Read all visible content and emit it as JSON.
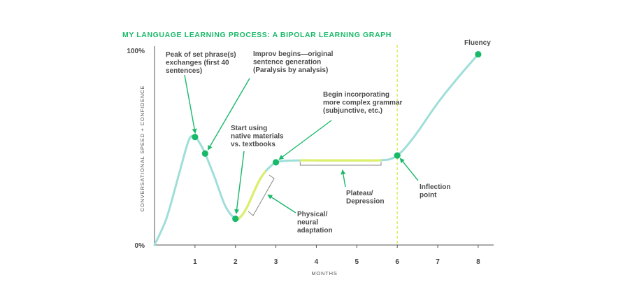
{
  "colors": {
    "curve": "#9fded9",
    "highlight": "#dcee6a",
    "accent": "#19b96a",
    "axis": "#555555",
    "text": "#4a4a4a",
    "title": "#19b96a",
    "bracket": "#888888"
  },
  "chart_data": {
    "type": "line",
    "title": "MY LANGUAGE LEARNING PROCESS: A BIPOLAR LEARNING GRAPH",
    "xlabel": "MONTHS",
    "ylabel": "CONVERSATIONAL SPEED + CONFIDENCE",
    "xlim": [
      0,
      8.4
    ],
    "ylim": [
      0,
      100
    ],
    "x_ticks": [
      "1",
      "2",
      "3",
      "4",
      "5",
      "6",
      "7",
      "8"
    ],
    "y_ticks": [
      "0%",
      "100%"
    ],
    "grid": false,
    "series": [
      {
        "x": [
          0,
          0.3,
          0.6,
          0.85,
          1.0,
          1.1,
          1.25,
          1.5,
          1.75,
          2.0,
          2.15,
          2.3,
          2.45,
          2.6,
          2.75,
          2.9,
          3.0,
          3.2,
          3.6,
          4.0,
          4.5,
          5.0,
          5.5,
          5.8,
          6.0,
          6.2,
          6.5,
          7.0,
          7.5,
          8.0
        ],
        "y": [
          0,
          14,
          36,
          54,
          55.5,
          53,
          47,
          34,
          20,
          13.5,
          15,
          20,
          27,
          33.5,
          38,
          41,
          42.5,
          43.2,
          43.5,
          43.5,
          43.5,
          43.5,
          43.5,
          44,
          46,
          50,
          58,
          73,
          86,
          98
        ]
      }
    ],
    "highlights": [
      {
        "label": "Physical/neural adaptation",
        "x_range": [
          2.05,
          2.75
        ]
      },
      {
        "label": "Plateau/Depression",
        "x_range": [
          3.6,
          5.6
        ]
      },
      {
        "label": "Inflection point",
        "vertical_x": 6.0
      }
    ],
    "key_points": [
      {
        "x": 1.0,
        "y": 55.5
      },
      {
        "x": 1.25,
        "y": 47
      },
      {
        "x": 2.0,
        "y": 13.5
      },
      {
        "x": 3.0,
        "y": 42.5
      },
      {
        "x": 6.0,
        "y": 46
      },
      {
        "x": 8.0,
        "y": 98
      }
    ],
    "annotations": [
      {
        "lines": [
          "Peak of set phrase(s)",
          "exchanges (first 40",
          "sentences)"
        ]
      },
      {
        "lines": [
          "Improv begins—original",
          "sentence generation",
          "(Paralysis by analysis)"
        ]
      },
      {
        "lines": [
          "Start using",
          "native materials",
          "vs. textbooks"
        ]
      },
      {
        "lines": [
          "Begin incorporating",
          "more complex grammar",
          "(subjunctive, etc.)"
        ]
      },
      {
        "lines": [
          "Plateau/",
          "Depression"
        ]
      },
      {
        "lines": [
          "Physical/",
          "neural",
          "adaptation"
        ]
      },
      {
        "lines": [
          "Inflection",
          "point"
        ]
      },
      {
        "lines": [
          "Fluency"
        ]
      }
    ]
  }
}
